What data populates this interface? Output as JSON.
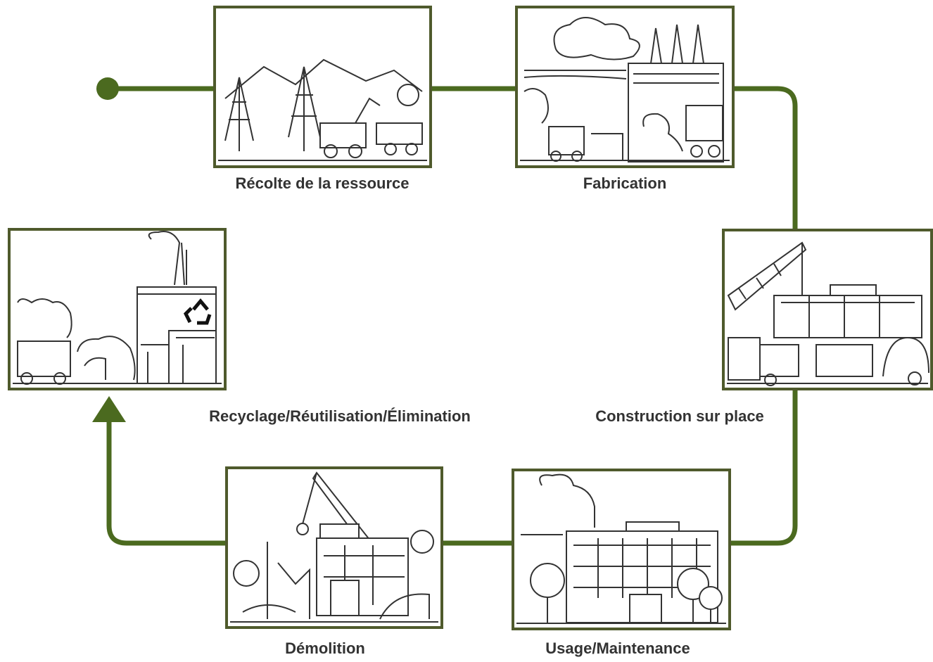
{
  "nodes": [
    {
      "label": "Récolte de la ressource"
    },
    {
      "label": "Fabrication"
    },
    {
      "label": "Construction sur place"
    },
    {
      "label": "Usage/Maintenance"
    },
    {
      "label": "Démolition"
    },
    {
      "label": "Recyclage/Réutilisation/Élimination"
    }
  ]
}
